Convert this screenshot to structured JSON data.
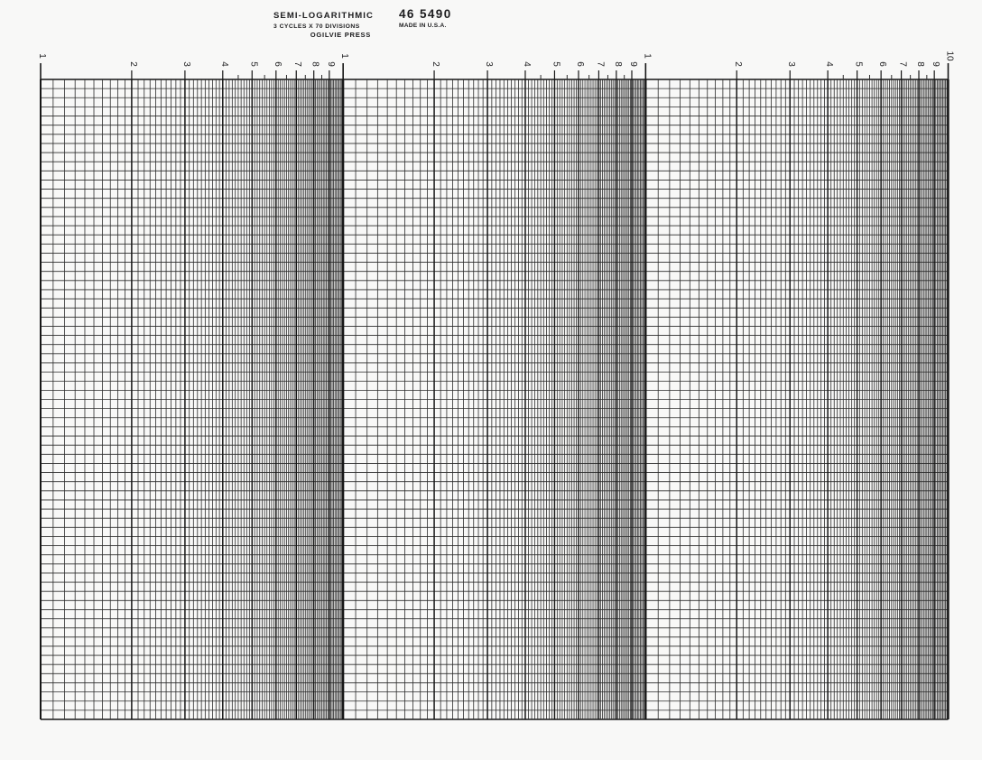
{
  "header": {
    "title": "SEMI-LOGARITHMIC",
    "subtitle": "3 CYCLES X 70 DIVISIONS",
    "publisher": "OGILVIE PRESS",
    "part_number": "46 5490",
    "origin": "MADE IN U.S.A."
  },
  "grid": {
    "type": "semi-logarithmic graph paper",
    "cycles": 3,
    "divisions": 70,
    "minor_log_step": 0.1,
    "tick_labels": [
      "1",
      "2",
      "3",
      "4",
      "5",
      "6",
      "7",
      "8",
      "9",
      "1",
      "2",
      "3",
      "4",
      "5",
      "6",
      "7",
      "8",
      "9",
      "1",
      "2",
      "3",
      "4",
      "5",
      "6",
      "7",
      "8",
      "9",
      "10"
    ],
    "half_tick_values": [
      4.5,
      5.5,
      6.5,
      7.5,
      8.5
    ],
    "colors": {
      "paper": "#f8f8f7",
      "line": "#2b2b2b",
      "major_line": "#161616",
      "text": "#1c1c1e"
    }
  }
}
